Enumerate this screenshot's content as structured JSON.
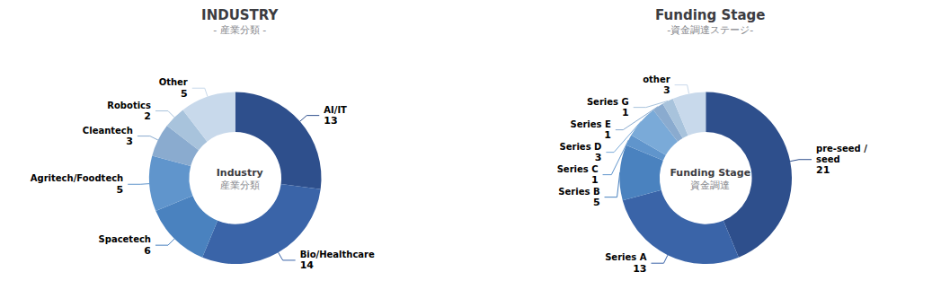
{
  "chart_data": [
    {
      "type": "donut",
      "title": "INDUSTRY",
      "subtitle": "- 産業分類 -",
      "annotations": [
        "Industry",
        "産業分類"
      ],
      "categories": [
        "AI/IT",
        "Bio/Healthcare",
        "Spacetech",
        "Agritech/Foodtech",
        "Cleantech",
        "Robotics",
        "Other"
      ],
      "values": [
        13,
        14,
        6,
        5,
        3,
        2,
        5
      ],
      "colors": [
        "#2e4f8c",
        "#3a64a8",
        "#4a82bf",
        "#6095cc",
        "#8aabcf",
        "#a8c3dc",
        "#c8d9eb"
      ],
      "data_labels": true
    },
    {
      "type": "donut",
      "title": "Funding Stage",
      "subtitle": "-資金調達ステージ-",
      "annotations": [
        "Funding Stage",
        "資金調達"
      ],
      "categories": [
        "pre-seed /\nseed",
        "Series A",
        "Series B",
        "Series C",
        "Series D",
        "Series E",
        "Series G",
        "other"
      ],
      "values": [
        21,
        13,
        5,
        1,
        3,
        1,
        1,
        3
      ],
      "colors": [
        "#2e4f8c",
        "#3a64a8",
        "#4a82bf",
        "#6095cc",
        "#7aaad8",
        "#8aabcf",
        "#a8c3dc",
        "#c8d9eb"
      ],
      "data_labels": true
    }
  ]
}
